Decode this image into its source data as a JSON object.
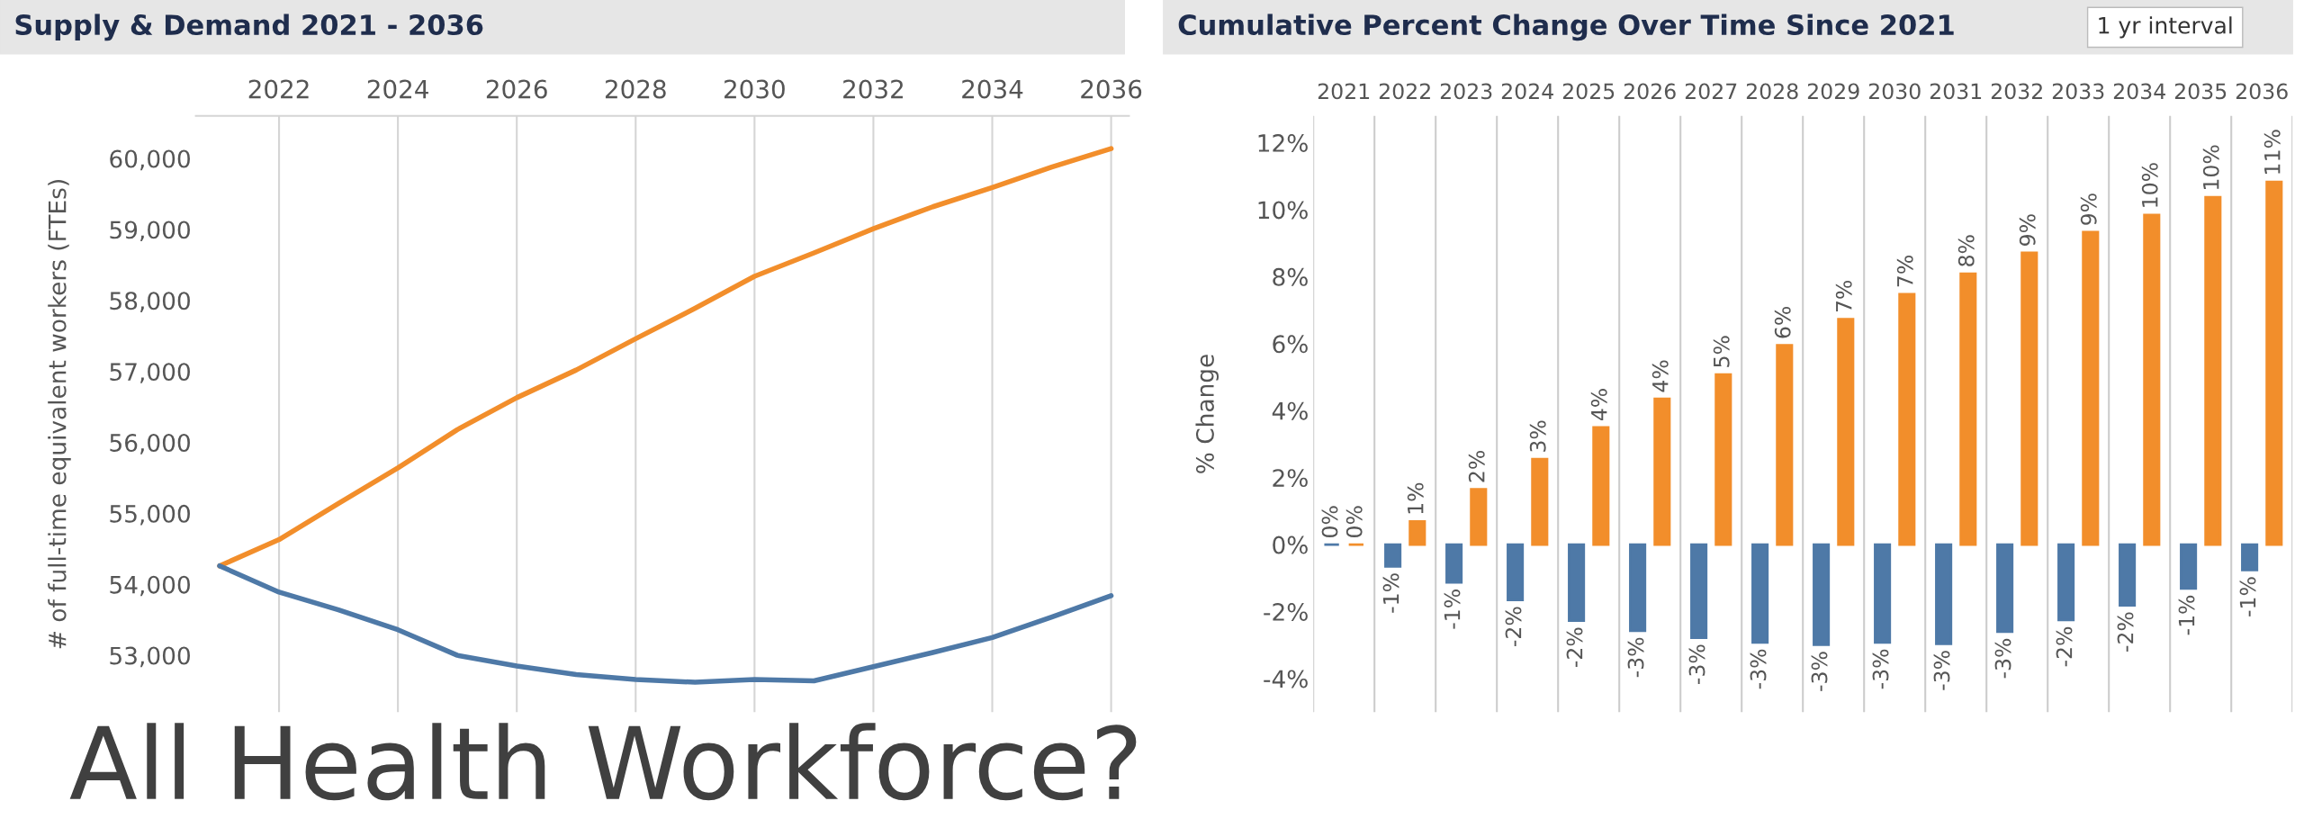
{
  "chart_data": [
    {
      "type": "line",
      "title": "Supply & Demand 2021 - 2036",
      "ylabel": "# of full-time equivalent workers (FTEs)",
      "x": [
        2021,
        2022,
        2023,
        2024,
        2025,
        2026,
        2027,
        2028,
        2029,
        2030,
        2031,
        2032,
        2033,
        2034,
        2035,
        2036
      ],
      "series": [
        {
          "color": "#f28e2b",
          "values": [
            54260,
            54630,
            55140,
            55640,
            56180,
            56630,
            57020,
            57460,
            57890,
            58340,
            58670,
            59010,
            59320,
            59590,
            59880,
            60140
          ]
        },
        {
          "color": "#4e79a7",
          "values": [
            54260,
            53890,
            53640,
            53360,
            53000,
            52850,
            52730,
            52660,
            52620,
            52660,
            52640,
            52840,
            53040,
            53250,
            53540,
            53840
          ]
        }
      ],
      "xlim": [
        2020.6,
        2036.3
      ],
      "xticks": [
        2022,
        2024,
        2026,
        2028,
        2030,
        2032,
        2034,
        2036
      ],
      "ylim": [
        52200,
        60600
      ],
      "yticks": [
        {
          "value": 53000,
          "label": "53,000"
        },
        {
          "value": 54000,
          "label": "54,000"
        },
        {
          "value": 55000,
          "label": "55,000"
        },
        {
          "value": 56000,
          "label": "56,000"
        },
        {
          "value": 57000,
          "label": "57,000"
        },
        {
          "value": 58000,
          "label": "58,000"
        },
        {
          "value": 59000,
          "label": "59,000"
        },
        {
          "value": 60000,
          "label": "60,000"
        }
      ],
      "grid": "x",
      "line_style": "solid",
      "annotations": [
        "All Health Workforce?"
      ]
    },
    {
      "type": "bar",
      "title": "Cumulative Percent Change Over Time Since 2021",
      "ylabel": "% Change",
      "categories": [
        "2021",
        "2022",
        "2023",
        "2024",
        "2025",
        "2026",
        "2027",
        "2028",
        "2029",
        "2030",
        "2031",
        "2032",
        "2033",
        "2034",
        "2035",
        "2036"
      ],
      "series": [
        {
          "color": "#4e79a7",
          "values": [
            0,
            -0.65,
            -1.13,
            -1.65,
            -2.27,
            -2.57,
            -2.78,
            -2.92,
            -2.99,
            -2.92,
            -2.96,
            -2.6,
            -2.25,
            -1.81,
            -1.31,
            -0.76
          ],
          "value_labels": [
            "0%",
            "-1%",
            "-1%",
            "-2%",
            "-2%",
            "-3%",
            "-3%",
            "-3%",
            "-3%",
            "-3%",
            "-3%",
            "-3%",
            "-2%",
            "-2%",
            "-1%",
            "-1%"
          ]
        },
        {
          "color": "#f28e2b",
          "values": [
            0,
            0.69,
            1.65,
            2.55,
            3.5,
            4.35,
            5.08,
            5.95,
            6.73,
            7.48,
            8.09,
            8.71,
            9.33,
            9.84,
            10.37,
            10.83
          ],
          "value_labels": [
            "0%",
            "1%",
            "2%",
            "3%",
            "4%",
            "4%",
            "5%",
            "6%",
            "7%",
            "7%",
            "8%",
            "9%",
            "9%",
            "10%",
            "10%",
            "11%"
          ]
        }
      ],
      "ylim": [
        -5,
        12.8
      ],
      "yticks": [
        {
          "value": -4,
          "label": "-4%"
        },
        {
          "value": -2,
          "label": "-2%"
        },
        {
          "value": 0,
          "label": "0%"
        },
        {
          "value": 2,
          "label": "2%"
        },
        {
          "value": 4,
          "label": "4%"
        },
        {
          "value": 6,
          "label": "6%"
        },
        {
          "value": 8,
          "label": "8%"
        },
        {
          "value": 10,
          "label": "10%"
        },
        {
          "value": 12,
          "label": "12%"
        }
      ],
      "grid": "x",
      "annotations": [
        "1 yr interval"
      ]
    }
  ]
}
